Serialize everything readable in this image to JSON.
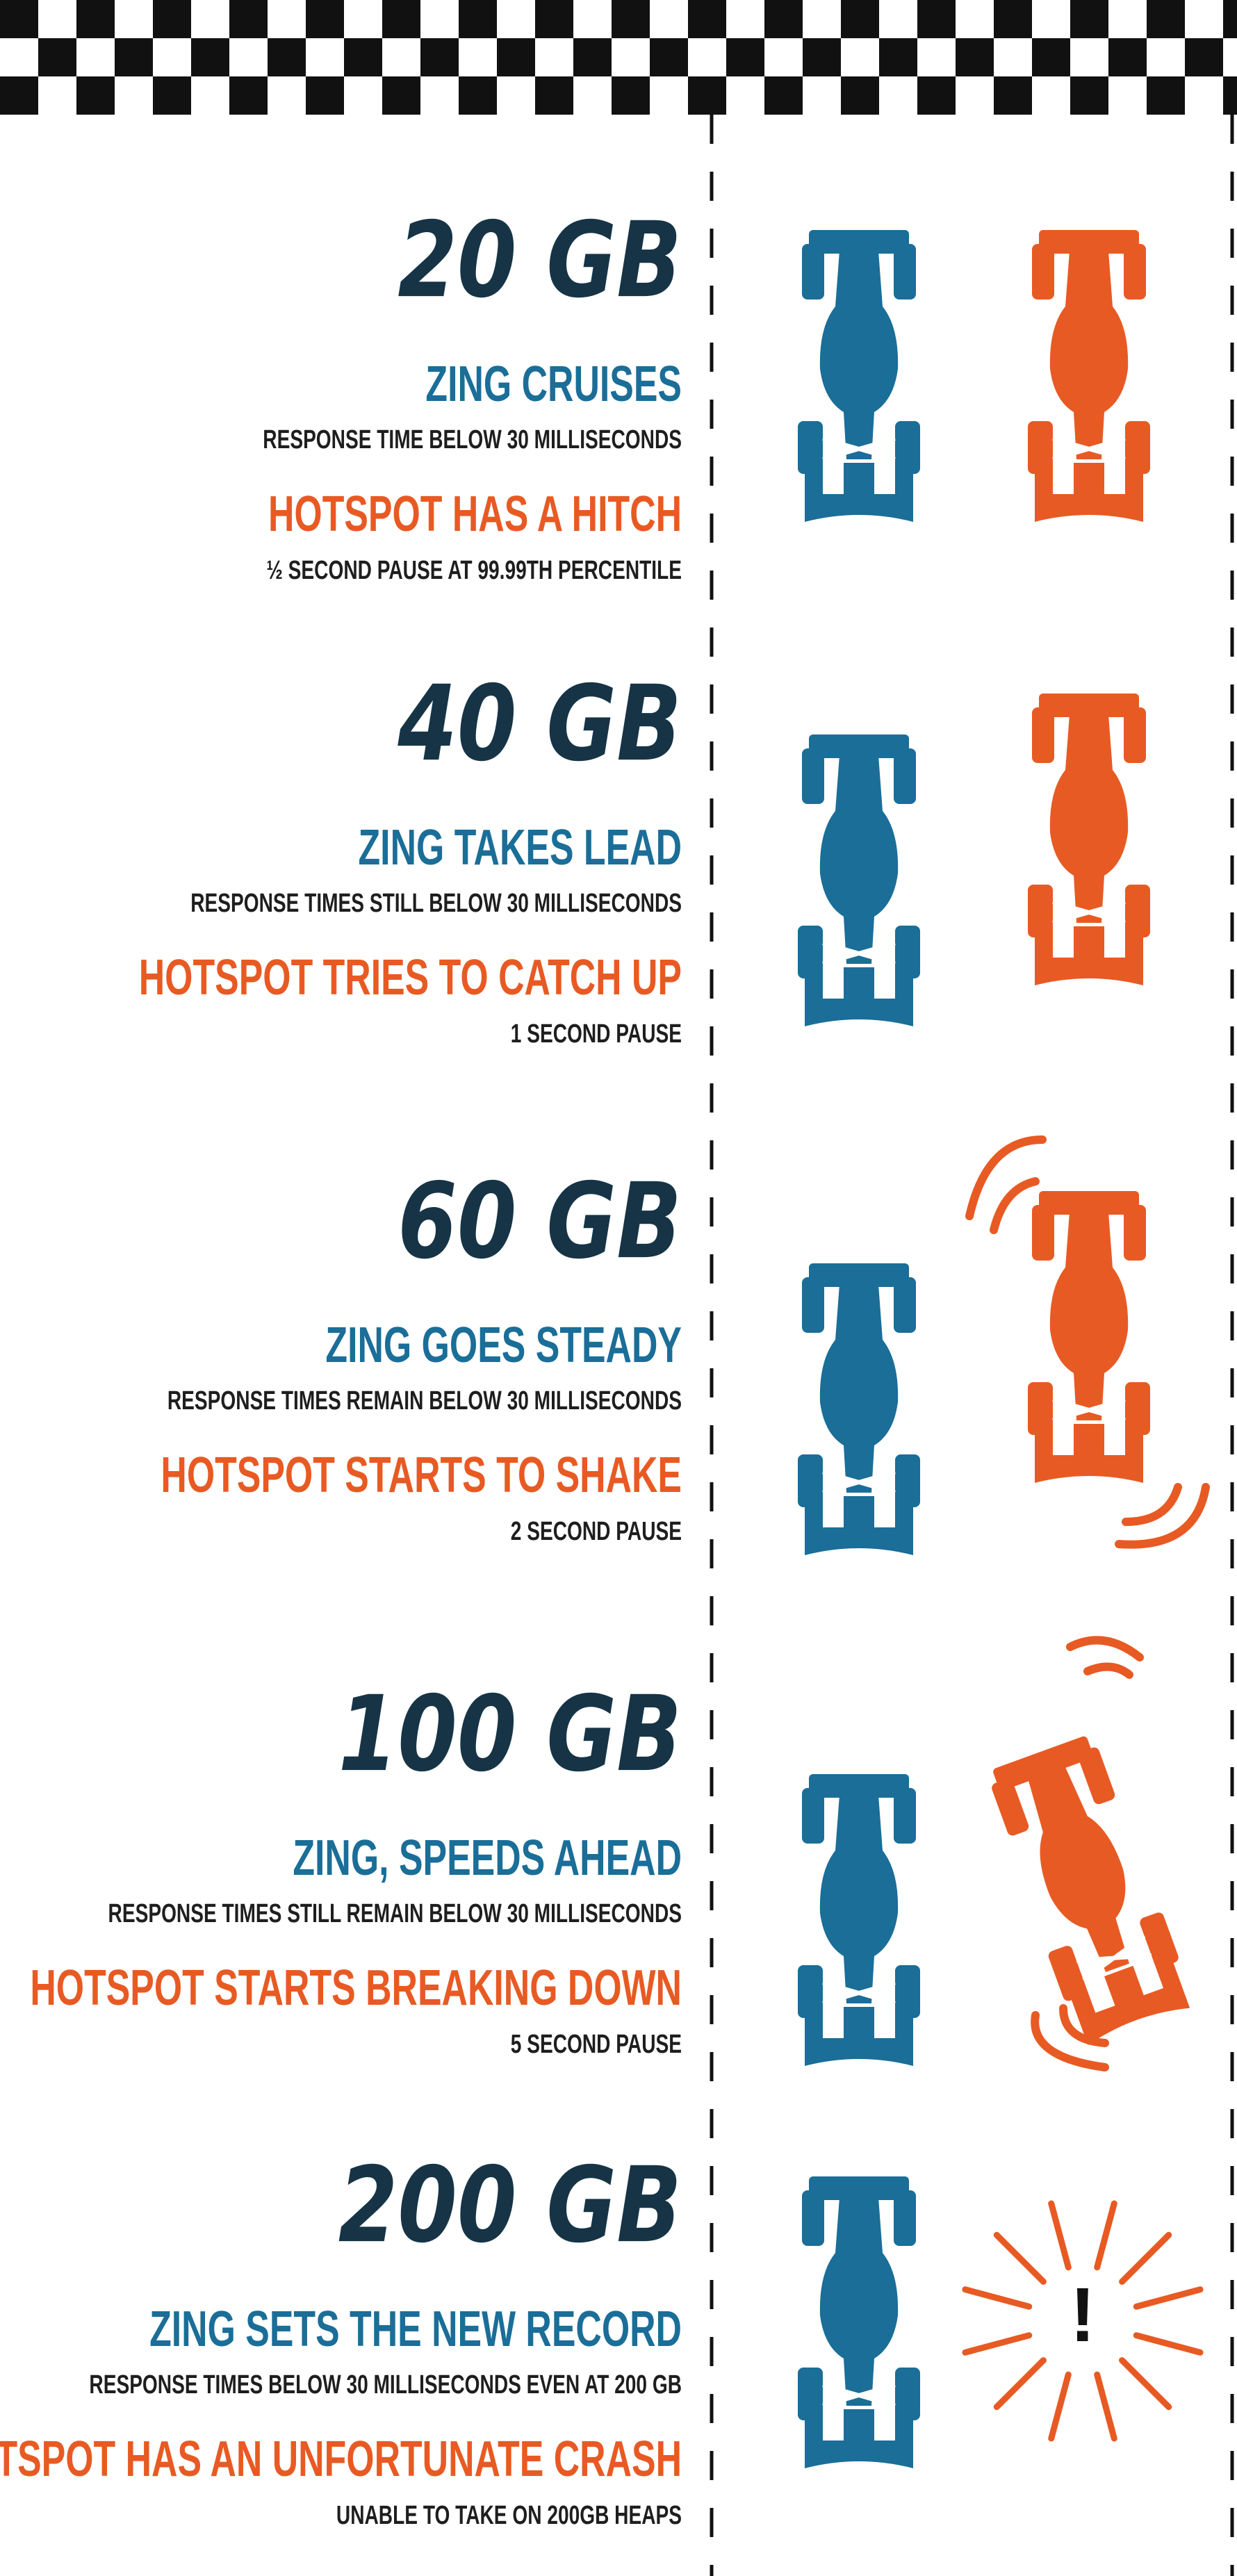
{
  "sections": [
    {
      "size": "20 GB",
      "zing": {
        "title": "ZING CRUISES",
        "detail": "RESPONSE TIME BELOW 30 MILLISECONDS"
      },
      "hotspot": {
        "title": "HOTSPOT HAS A HITCH",
        "detail": "½ SECOND PAUSE AT 99.99TH PERCENTILE"
      }
    },
    {
      "size": "40 GB",
      "zing": {
        "title": "ZING TAKES LEAD",
        "detail": "RESPONSE TIMES STILL BELOW 30 MILLISECONDS"
      },
      "hotspot": {
        "title": "HOTSPOT TRIES TO CATCH UP",
        "detail": "1 SECOND PAUSE"
      }
    },
    {
      "size": "60 GB",
      "zing": {
        "title": "ZING GOES STEADY",
        "detail": "RESPONSE TIMES REMAIN BELOW 30 MILLISECONDS"
      },
      "hotspot": {
        "title": "HOTSPOT STARTS TO SHAKE",
        "detail": "2 SECOND PAUSE"
      }
    },
    {
      "size": "100 GB",
      "zing": {
        "title": "ZING, SPEEDS AHEAD",
        "detail": "RESPONSE TIMES STILL REMAIN BELOW 30 MILLISECONDS"
      },
      "hotspot": {
        "title": "HOTSPOT STARTS BREAKING DOWN",
        "detail": "5 SECOND PAUSE"
      }
    },
    {
      "size": "200 GB",
      "zing": {
        "title": "ZING SETS THE NEW RECORD",
        "detail": "RESPONSE TIMES BELOW 30 MILLISECONDS EVEN AT 200 GB"
      },
      "hotspot": {
        "title": "HOTSPOT HAS AN UNFORTUNATE CRASH",
        "detail": "UNABLE TO TAKE ON 200GB HEAPS"
      }
    }
  ],
  "crash_mark": "!"
}
